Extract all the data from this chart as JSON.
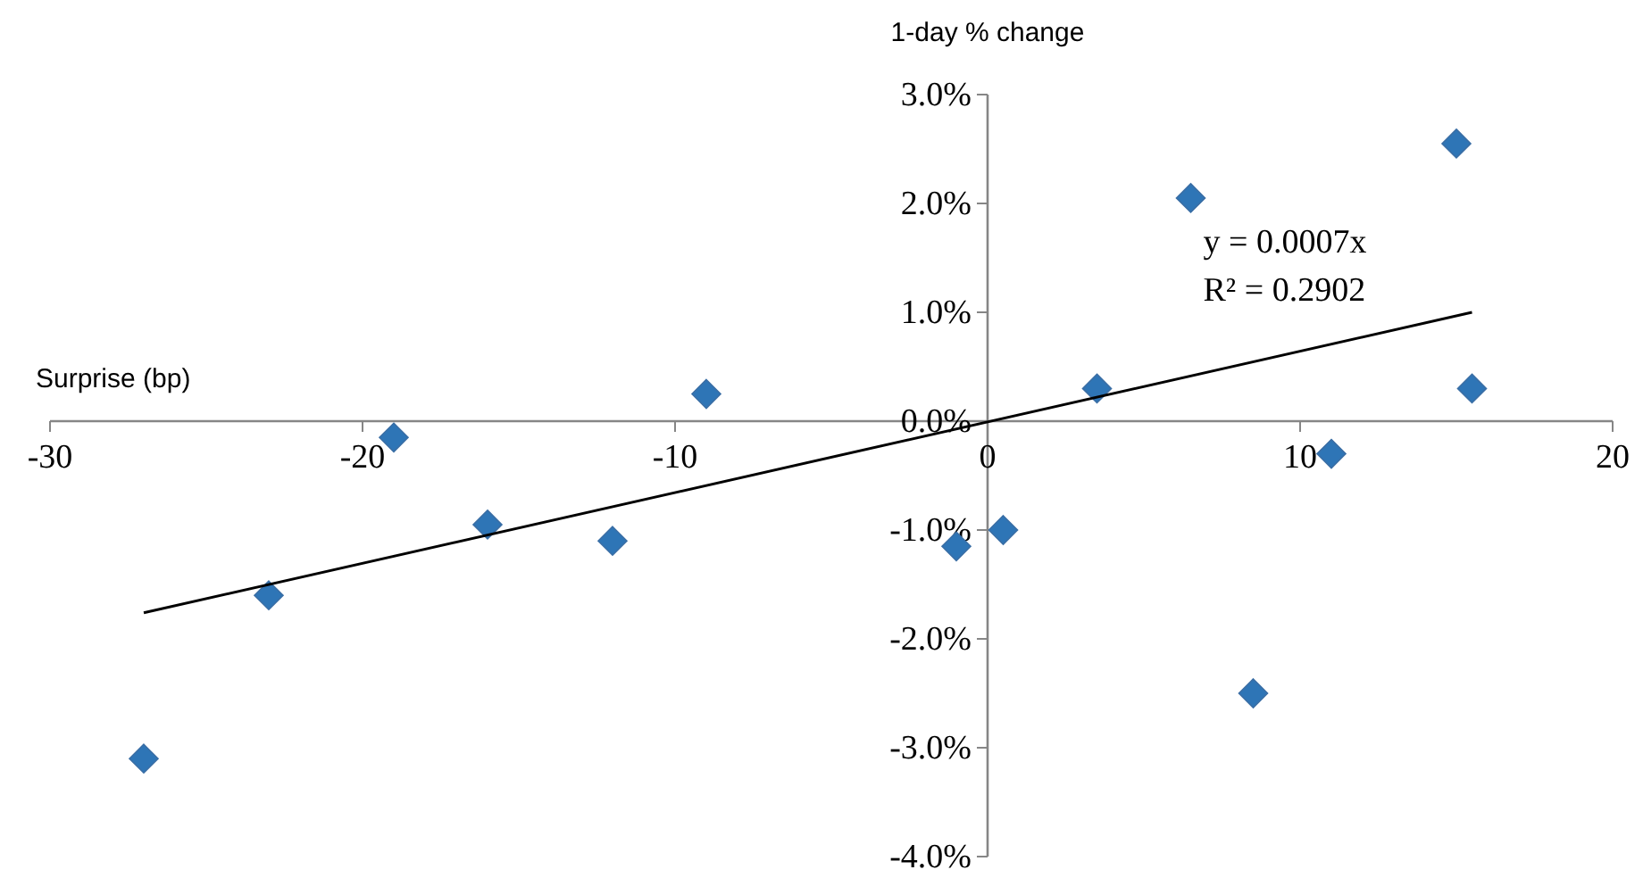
{
  "chart_data": {
    "type": "scatter",
    "xlabel": "Surprise (bp)",
    "ylabel": "1-day % change",
    "annotations": [
      "y = 0.0007x",
      "R² = 0.2902"
    ],
    "xlim": [
      -30,
      20
    ],
    "xticks": [
      -30,
      -20,
      -10,
      0,
      10,
      20
    ],
    "ylim": [
      -4,
      3
    ],
    "yticks": [
      {
        "value": 3,
        "label": "3.0%"
      },
      {
        "value": 2,
        "label": "2.0%"
      },
      {
        "value": 1,
        "label": "1.0%"
      },
      {
        "value": 0,
        "label": "0.0%"
      },
      {
        "value": -1,
        "label": "-1.0%"
      },
      {
        "value": -2,
        "label": "-2.0%"
      },
      {
        "value": -3,
        "label": "-3.0%"
      },
      {
        "value": -4,
        "label": "-4.0%"
      }
    ],
    "marker": "diamond",
    "series": [
      {
        "color": "#2e75b6",
        "x": [
          -27,
          -23,
          -19,
          -16,
          -12,
          -9,
          -1,
          0.5,
          3.5,
          6.5,
          8.5,
          11,
          15,
          15.5
        ],
        "values": [
          -3.1,
          -1.6,
          -0.15,
          -0.95,
          -1.1,
          0.25,
          -1.15,
          -1.0,
          0.3,
          2.05,
          -2.5,
          -0.3,
          2.55,
          0.3
        ]
      },
      {
        "type": "line",
        "marker": "none",
        "color": "#000000",
        "x": [
          -27,
          15.5
        ],
        "values": [
          -1.76,
          1.0
        ]
      }
    ]
  }
}
